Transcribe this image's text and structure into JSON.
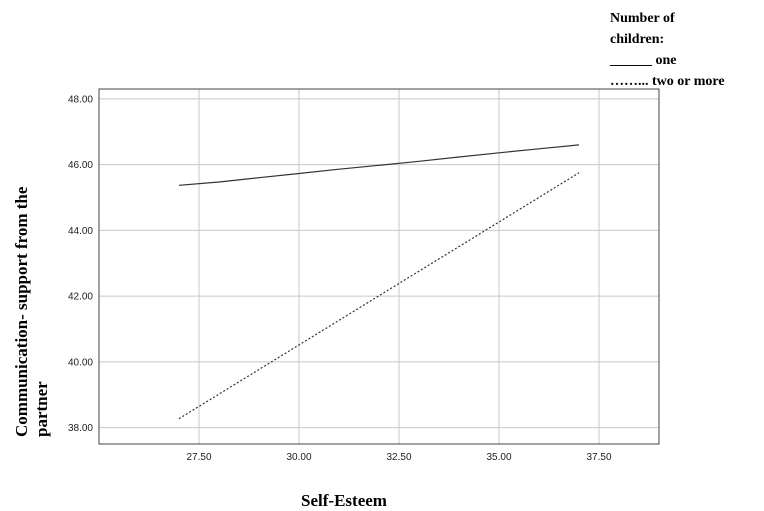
{
  "chart_data": {
    "type": "line",
    "xlabel": "Self-Esteem",
    "ylabel": "Communication- support from the partner",
    "xlim": [
      25.0,
      39.0
    ],
    "ylim": [
      37.5,
      48.3
    ],
    "x_ticks": [
      "27.50",
      "30.00",
      "32.50",
      "35.00",
      "37.50"
    ],
    "y_ticks": [
      "38.00",
      "40.00",
      "42.00",
      "44.00",
      "46.00",
      "48.00"
    ],
    "x_tick_values": [
      27.5,
      30.0,
      32.5,
      35.0,
      37.5
    ],
    "y_tick_values": [
      38,
      40,
      42,
      44,
      46,
      48
    ],
    "grid": true,
    "legend": {
      "title_line1": "Number of",
      "title_line2": "children:",
      "entries": [
        "______ one",
        "……... two or more"
      ],
      "placement": "top-right"
    },
    "series": [
      {
        "name": "one",
        "style": "solid",
        "color": "#333333",
        "x": [
          27.0,
          28.0,
          29.0,
          30.0,
          31.0,
          32.0,
          33.0,
          34.0,
          35.0,
          36.0,
          37.0
        ],
        "y": [
          45.37,
          45.47,
          45.6,
          45.73,
          45.86,
          45.98,
          46.1,
          46.23,
          46.36,
          46.48,
          46.6
        ]
      },
      {
        "name": "two or more",
        "style": "dotted",
        "color": "#333333",
        "x": [
          27.0,
          37.0
        ],
        "y": [
          38.27,
          45.75
        ]
      }
    ]
  }
}
